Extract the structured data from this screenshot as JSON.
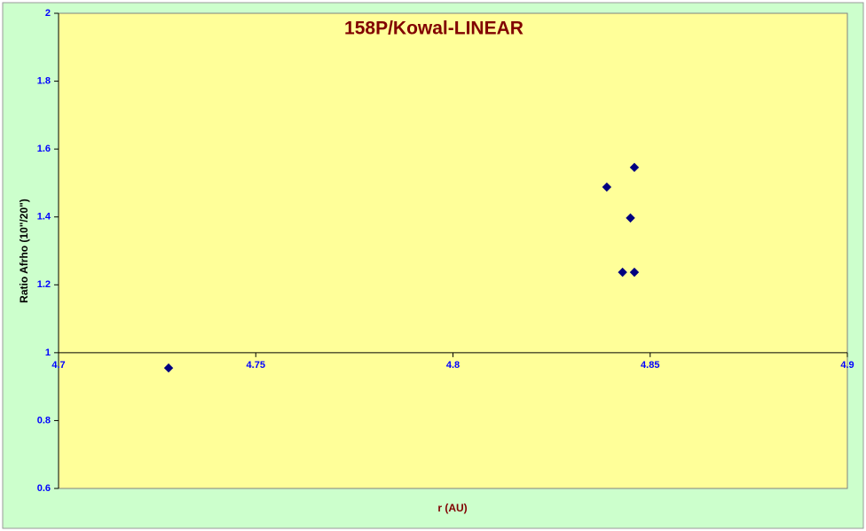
{
  "chart_data": {
    "type": "scatter",
    "title": "158P/Kowal-LINEAR",
    "xlabel": "r (AU)",
    "ylabel": "Ratio Afrho  (10\"/20\")",
    "xlim": [
      4.7,
      4.9
    ],
    "xticks": [
      4.7,
      4.75,
      4.8,
      4.85,
      4.9
    ],
    "ylim": [
      0.6,
      2
    ],
    "yticks": [
      0.6,
      0.8,
      1,
      1.2,
      1.4,
      1.6,
      1.8,
      2
    ],
    "xaxis_crosses_at": 1,
    "series": [
      {
        "color": "#000080",
        "marker": "diamond",
        "x": [
          4.7279,
          4.839,
          4.846,
          4.845,
          4.843,
          4.846
        ],
        "values": [
          0.955,
          1.488,
          1.546,
          1.397,
          1.237,
          1.237
        ]
      }
    ]
  }
}
